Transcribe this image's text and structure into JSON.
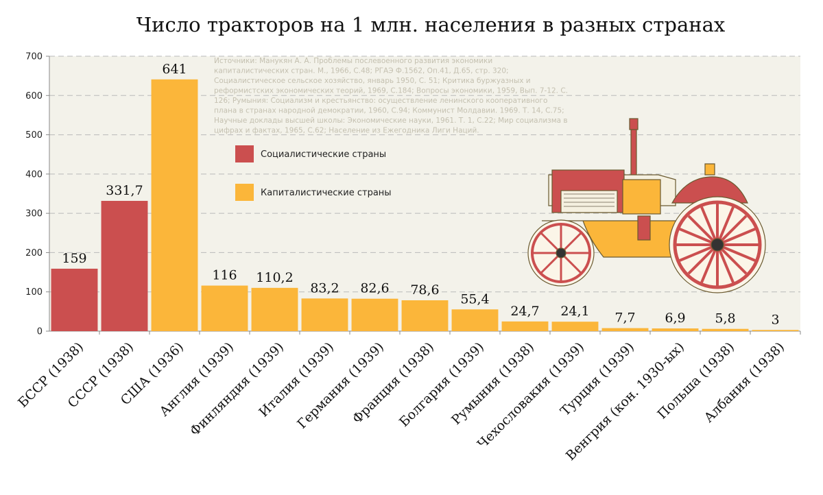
{
  "colors": {
    "socialist": "#cb4f4f",
    "capitalist": "#fbb63a",
    "plot_bg": "#f3f2ea"
  },
  "chart_data": {
    "type": "bar",
    "title": "Число тракторов на 1 млн. населения в разных странах",
    "ylim": [
      0,
      700
    ],
    "yticks": [
      0,
      100,
      200,
      300,
      400,
      500,
      600,
      700
    ],
    "grid": true,
    "legend_position": "top-center",
    "legend": [
      {
        "label": "Социалистические страны",
        "group": "socialist"
      },
      {
        "label": "Капиталистические страны",
        "group": "capitalist"
      }
    ],
    "categories": [
      "БССР  (1938)",
      "СССР (1938)",
      "США (1936)",
      "Англия (1939)",
      "Финляндия (1939)",
      "Италия (1939)",
      "Германия (1939)",
      "Франция (1938)",
      "Болгария (1939)",
      "Румыния (1938)",
      "Чехословакия (1939)",
      "Турция (1939)",
      "Венгрия (кон. 1930-ых)",
      "Польша (1938)",
      "Албания (1938)"
    ],
    "values": [
      159,
      331.7,
      641,
      116,
      110.2,
      83.2,
      82.6,
      78.6,
      55.4,
      24.7,
      24.1,
      7.7,
      6.9,
      5.8,
      3
    ],
    "value_labels": [
      "159",
      "331,7",
      "641",
      "116",
      "110,2",
      "83,2",
      "82,6",
      "78,6",
      "55,4",
      "24,7",
      "24,1",
      "7,7",
      "6,9",
      "5,8",
      "3"
    ],
    "groups": [
      "socialist",
      "socialist",
      "capitalist",
      "capitalist",
      "capitalist",
      "capitalist",
      "capitalist",
      "capitalist",
      "capitalist",
      "capitalist",
      "capitalist",
      "capitalist",
      "capitalist",
      "capitalist",
      "capitalist"
    ],
    "source_lines": [
      "Источники: Манукян А. А. Проблемы послевоенного развития экономики",
      "капиталистических стран. М., 1966, С.48; РГАЭ Ф.1562, Оп.41, Д.65, стр. 320;",
      "Социалистическое сельское хозяйство, январь 1950, С. 51; Критика буржуазных и",
      "реформистских экономических теорий, 1969, С.184; Вопросы экономики, 1959, Вып. 7-12. С.",
      "126; Румыния: Социализм и крестьянство: осуществление ленинского кооперативного",
      "плана в странах народной демократии, 1960, С.94; Коммунист Молдавии. 1969. Т. 14, С.75;",
      "Научные доклады высшей школы: Экономические науки, 1961. Т. 1, С.22; Мир социализма в",
      "цифрах и фактах, 1965, С.62;  Население из Ежегодника Лиги Наций."
    ]
  },
  "illustration": {
    "icon": "tractor-icon"
  }
}
